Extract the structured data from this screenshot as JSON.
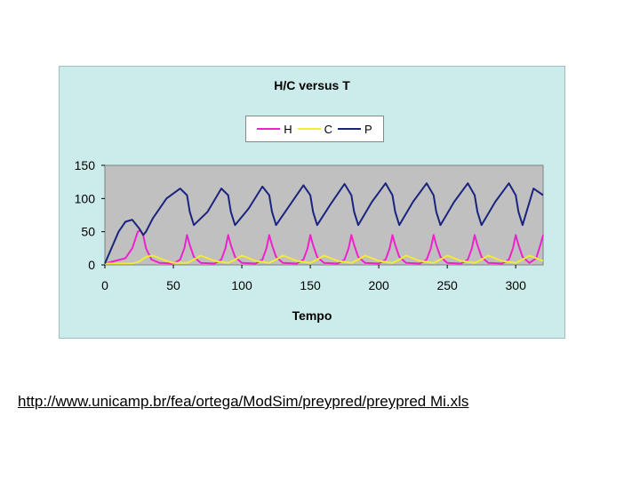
{
  "chart_data": {
    "type": "line",
    "title": "H/C versus T",
    "xlabel": "Tempo",
    "ylabel": "",
    "xlim": [
      0,
      320
    ],
    "ylim": [
      0,
      150
    ],
    "xticks": [
      0,
      50,
      100,
      150,
      200,
      250,
      300
    ],
    "yticks": [
      0,
      50,
      100,
      150
    ],
    "grid": false,
    "legend": "top-center",
    "plot_background": "#c0c0c0",
    "series": [
      {
        "name": "H",
        "color": "#ee22cc",
        "x": [
          0,
          15,
          20,
          24,
          26,
          28,
          30,
          34,
          40,
          50,
          55,
          58,
          60,
          62,
          65,
          70,
          80,
          85,
          88,
          90,
          92,
          95,
          100,
          110,
          115,
          118,
          120,
          122,
          125,
          130,
          140,
          145,
          148,
          150,
          152,
          155,
          160,
          170,
          175,
          178,
          180,
          182,
          185,
          190,
          200,
          205,
          208,
          210,
          212,
          215,
          220,
          230,
          235,
          238,
          240,
          242,
          245,
          250,
          260,
          265,
          268,
          270,
          272,
          275,
          280,
          290,
          295,
          298,
          300,
          302,
          305,
          310,
          315,
          318,
          320
        ],
        "y": [
          2,
          10,
          25,
          50,
          52,
          45,
          25,
          8,
          3,
          2,
          8,
          25,
          45,
          30,
          12,
          3,
          2,
          8,
          25,
          45,
          30,
          12,
          3,
          2,
          8,
          25,
          45,
          30,
          12,
          3,
          2,
          8,
          25,
          45,
          30,
          12,
          3,
          2,
          8,
          25,
          45,
          30,
          12,
          3,
          2,
          8,
          25,
          45,
          30,
          12,
          3,
          2,
          8,
          25,
          45,
          30,
          12,
          3,
          2,
          8,
          25,
          45,
          30,
          12,
          3,
          2,
          8,
          25,
          45,
          30,
          12,
          3,
          10,
          30,
          45
        ]
      },
      {
        "name": "C",
        "color": "#eeee33",
        "x": [
          0,
          20,
          25,
          30,
          35,
          40,
          45,
          50,
          60,
          65,
          70,
          75,
          80,
          90,
          95,
          100,
          105,
          110,
          120,
          125,
          130,
          135,
          140,
          150,
          155,
          160,
          165,
          170,
          180,
          185,
          190,
          195,
          200,
          210,
          215,
          220,
          225,
          230,
          240,
          245,
          250,
          255,
          260,
          270,
          275,
          280,
          285,
          290,
          300,
          305,
          310,
          315,
          320
        ],
        "y": [
          2,
          2,
          5,
          12,
          14,
          10,
          6,
          3,
          3,
          8,
          14,
          10,
          6,
          3,
          8,
          14,
          10,
          6,
          3,
          8,
          14,
          10,
          6,
          3,
          8,
          14,
          10,
          6,
          3,
          8,
          14,
          10,
          6,
          3,
          8,
          14,
          10,
          6,
          3,
          8,
          14,
          10,
          6,
          3,
          8,
          14,
          10,
          6,
          3,
          8,
          14,
          10,
          6
        ]
      },
      {
        "name": "P",
        "color": "#1a237e",
        "x": [
          0,
          10,
          15,
          20,
          25,
          28,
          30,
          35,
          45,
          55,
          60,
          62,
          65,
          75,
          85,
          90,
          92,
          95,
          105,
          115,
          120,
          122,
          125,
          135,
          145,
          150,
          152,
          155,
          165,
          175,
          180,
          182,
          185,
          195,
          205,
          210,
          212,
          215,
          225,
          235,
          240,
          242,
          245,
          255,
          265,
          270,
          272,
          275,
          285,
          295,
          300,
          302,
          305,
          313,
          320
        ],
        "y": [
          2,
          50,
          65,
          68,
          55,
          45,
          50,
          70,
          100,
          115,
          105,
          80,
          60,
          80,
          115,
          105,
          80,
          60,
          85,
          118,
          105,
          80,
          60,
          90,
          120,
          105,
          80,
          60,
          92,
          122,
          105,
          80,
          60,
          95,
          123,
          105,
          80,
          60,
          95,
          123,
          105,
          80,
          60,
          95,
          123,
          105,
          80,
          60,
          95,
          123,
          105,
          80,
          60,
          115,
          105
        ]
      }
    ]
  },
  "source_url": "http://www.unicamp.br/fea/ortega/ModSim/preypred/preypred Mi.xls"
}
